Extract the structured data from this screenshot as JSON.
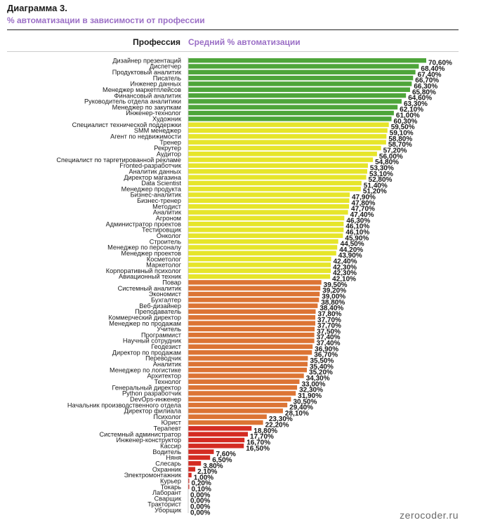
{
  "header": {
    "title": "Диаграмма 3.",
    "subtitle": "% автоматизации в зависимости от профессии",
    "col_category": "Профессия",
    "col_value": "Средний % автоматизации"
  },
  "source": "zerocoder.ru",
  "colors": {
    "green": "#4ea53a",
    "yellow": "#e6e52a",
    "orange": "#dc7434",
    "red": "#d42b22"
  },
  "chart_data": {
    "type": "bar",
    "orientation": "horizontal",
    "xlim": [
      0,
      70.6
    ],
    "grid": false,
    "categories": [
      "Дизайнер презентаций",
      "Диспетчер",
      "Продуктовый аналитик",
      "Писатель",
      "Инженер данных",
      "Менеджер маркетплейсов",
      "Финансовый аналитик",
      "Руководитель отдела аналитики",
      "Менеджер по закупкам",
      "Инженер-технолог",
      "Художник",
      "Специалист технической поддержки",
      "SMM менеджер",
      "Агент по недвижимости",
      "Тренер",
      "Рекрутер",
      "Аудитор",
      "Специалист по таргетированной рекламе",
      "Fronted-разработчик",
      "Аналитик данных",
      "Директор магазина",
      "Data Scientist",
      "Менеджер продукта",
      "Бизнес-аналитик",
      "Бизнес-тренер",
      "Методист",
      "Аналитик",
      "Агроном",
      "Администратор проектов",
      "Тестировщик",
      "Онколог",
      "Строитель",
      "Менеджер по персоналу",
      "Менеджер проектов",
      "Косметолог",
      "Маркетолог",
      "Корпоративный психолог",
      "Авиационный техник",
      "Повар",
      "Системный аналитик",
      "Экономист",
      "Бухгалтер",
      "Веб-дизайнер",
      "Преподаватель",
      "Коммерческий директор",
      "Менеджер по продажам",
      "Учитель",
      "Программист",
      "Научный сотрудник",
      "Геодезист",
      "Директор по продажам",
      "Переводчик",
      "Аналитик",
      "Менеджер по логистике",
      "Архитектор",
      "Технолог",
      "Генеральный директор",
      "Python разработчик",
      "DevOps-инженер",
      "Начальник производственного отдела",
      "Директор филиала",
      "Психолог",
      "Юрист",
      "Терапевт",
      "Системный администратор",
      "Инженер-конструктор",
      "Кассир",
      "Водитель",
      "Няня",
      "Слесарь",
      "Охранник",
      "Электромонтажник",
      "Курьер",
      "Токарь",
      "Лаборант",
      "Сварщик",
      "Тракторист",
      "Уборщик"
    ],
    "values": [
      70.6,
      68.4,
      67.4,
      66.7,
      66.3,
      65.8,
      64.6,
      63.3,
      62.1,
      61.0,
      60.3,
      59.5,
      59.1,
      58.8,
      58.7,
      57.2,
      56.0,
      54.8,
      53.3,
      53.1,
      52.8,
      51.4,
      51.2,
      47.9,
      47.8,
      47.7,
      47.4,
      46.3,
      46.1,
      46.1,
      45.9,
      44.5,
      44.2,
      43.9,
      42.4,
      42.3,
      42.3,
      42.1,
      39.5,
      39.2,
      39.0,
      38.8,
      38.4,
      37.8,
      37.7,
      37.7,
      37.5,
      37.4,
      37.4,
      36.9,
      36.7,
      35.5,
      35.4,
      35.2,
      34.3,
      33.0,
      32.3,
      31.9,
      30.5,
      29.4,
      28.1,
      23.3,
      22.2,
      18.8,
      17.7,
      16.7,
      16.5,
      7.6,
      6.5,
      3.8,
      2.1,
      1.0,
      0.2,
      0.1,
      0.0,
      0.0,
      0.0,
      0.0
    ],
    "value_labels": [
      "70,60%",
      "68,40%",
      "67,40%",
      "66,70%",
      "66,30%",
      "65,80%",
      "64,60%",
      "63,30%",
      "62,10%",
      "61,00%",
      "60,30%",
      "59,50%",
      "59,10%",
      "58,80%",
      "58,70%",
      "57,20%",
      "56,00%",
      "54,80%",
      "53,30%",
      "53,10%",
      "52,80%",
      "51,40%",
      "51,20%",
      "47,90%",
      "47,80%",
      "47,70%",
      "47,40%",
      "46,30%",
      "46,10%",
      "46,10%",
      "45,90%",
      "44,50%",
      "44,20%",
      "43,90%",
      "42,40%",
      "42,30%",
      "42,30%",
      "42,10%",
      "39,50%",
      "39,20%",
      "39,00%",
      "38,80%",
      "38,40%",
      "37,80%",
      "37,70%",
      "37,70%",
      "37,50%",
      "37,40%",
      "37,40%",
      "36,90%",
      "36,70%",
      "35,50%",
      "35,40%",
      "35,20%",
      "34,30%",
      "33,00%",
      "32,30%",
      "31,90%",
      "30,50%",
      "29,40%",
      "28,10%",
      "23,30%",
      "22,20%",
      "18,80%",
      "17,70%",
      "16,70%",
      "16,50%",
      "7,60%",
      "6,50%",
      "3,80%",
      "2,10%",
      "1,00%",
      "0,20%",
      "0,10%",
      "0,00%",
      "0,00%",
      "0,00%",
      "0,00%"
    ],
    "color_groups": [
      "green",
      "green",
      "green",
      "green",
      "green",
      "green",
      "green",
      "green",
      "green",
      "green",
      "green",
      "yellow",
      "yellow",
      "yellow",
      "yellow",
      "yellow",
      "yellow",
      "yellow",
      "yellow",
      "yellow",
      "yellow",
      "yellow",
      "yellow",
      "yellow",
      "yellow",
      "yellow",
      "yellow",
      "yellow",
      "yellow",
      "yellow",
      "yellow",
      "yellow",
      "yellow",
      "yellow",
      "yellow",
      "yellow",
      "yellow",
      "yellow",
      "orange",
      "orange",
      "orange",
      "orange",
      "orange",
      "orange",
      "orange",
      "orange",
      "orange",
      "orange",
      "orange",
      "orange",
      "orange",
      "orange",
      "orange",
      "orange",
      "orange",
      "orange",
      "orange",
      "orange",
      "orange",
      "orange",
      "orange",
      "orange",
      "orange",
      "red",
      "red",
      "red",
      "red",
      "red",
      "red",
      "red",
      "red",
      "red",
      "red",
      "red",
      "red",
      "red",
      "red",
      "red"
    ]
  }
}
